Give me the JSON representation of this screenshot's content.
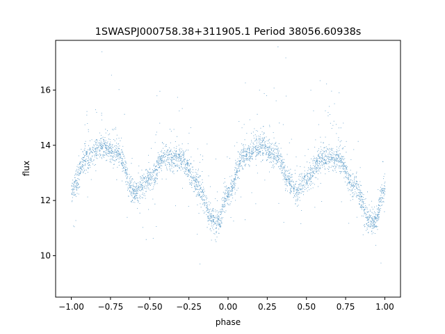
{
  "chart_data": {
    "type": "scatter",
    "title": "1SWASPJ000758.38+311905.1 Period 38056.60938s",
    "xlabel": "phase",
    "ylabel": "flux",
    "xlim": [
      -1.1,
      1.1
    ],
    "ylim": [
      8.5,
      17.8
    ],
    "xticks": [
      -1.0,
      -0.75,
      -0.5,
      -0.25,
      0.0,
      0.25,
      0.5,
      0.75,
      1.0
    ],
    "xtick_labels": [
      "−1.00",
      "−0.75",
      "−0.50",
      "−0.25",
      "0.00",
      "0.25",
      "0.50",
      "0.75",
      "1.00"
    ],
    "yticks": [
      10,
      12,
      14,
      16
    ],
    "ytick_labels": [
      "10",
      "12",
      "14",
      "16"
    ],
    "grid": false,
    "marker_color": "#1f77b4",
    "series_shape": {
      "description_points": "approximate mean flux vs phase; curve repeats with period 1 in phase",
      "x": [
        -1.0,
        -0.9,
        -0.8,
        -0.7,
        -0.6,
        -0.5,
        -0.4,
        -0.3,
        -0.2,
        -0.1,
        -0.07,
        0.0,
        0.1,
        0.2,
        0.3,
        0.4,
        0.43,
        0.5,
        0.6,
        0.7,
        0.8,
        0.9,
        0.93,
        1.0
      ],
      "y": [
        12.4,
        13.6,
        13.95,
        13.7,
        12.3,
        12.8,
        13.6,
        13.5,
        12.6,
        11.3,
        11.2,
        12.3,
        13.6,
        13.95,
        13.7,
        12.6,
        12.3,
        12.8,
        13.55,
        13.5,
        12.6,
        11.3,
        11.2,
        12.4
      ]
    }
  }
}
